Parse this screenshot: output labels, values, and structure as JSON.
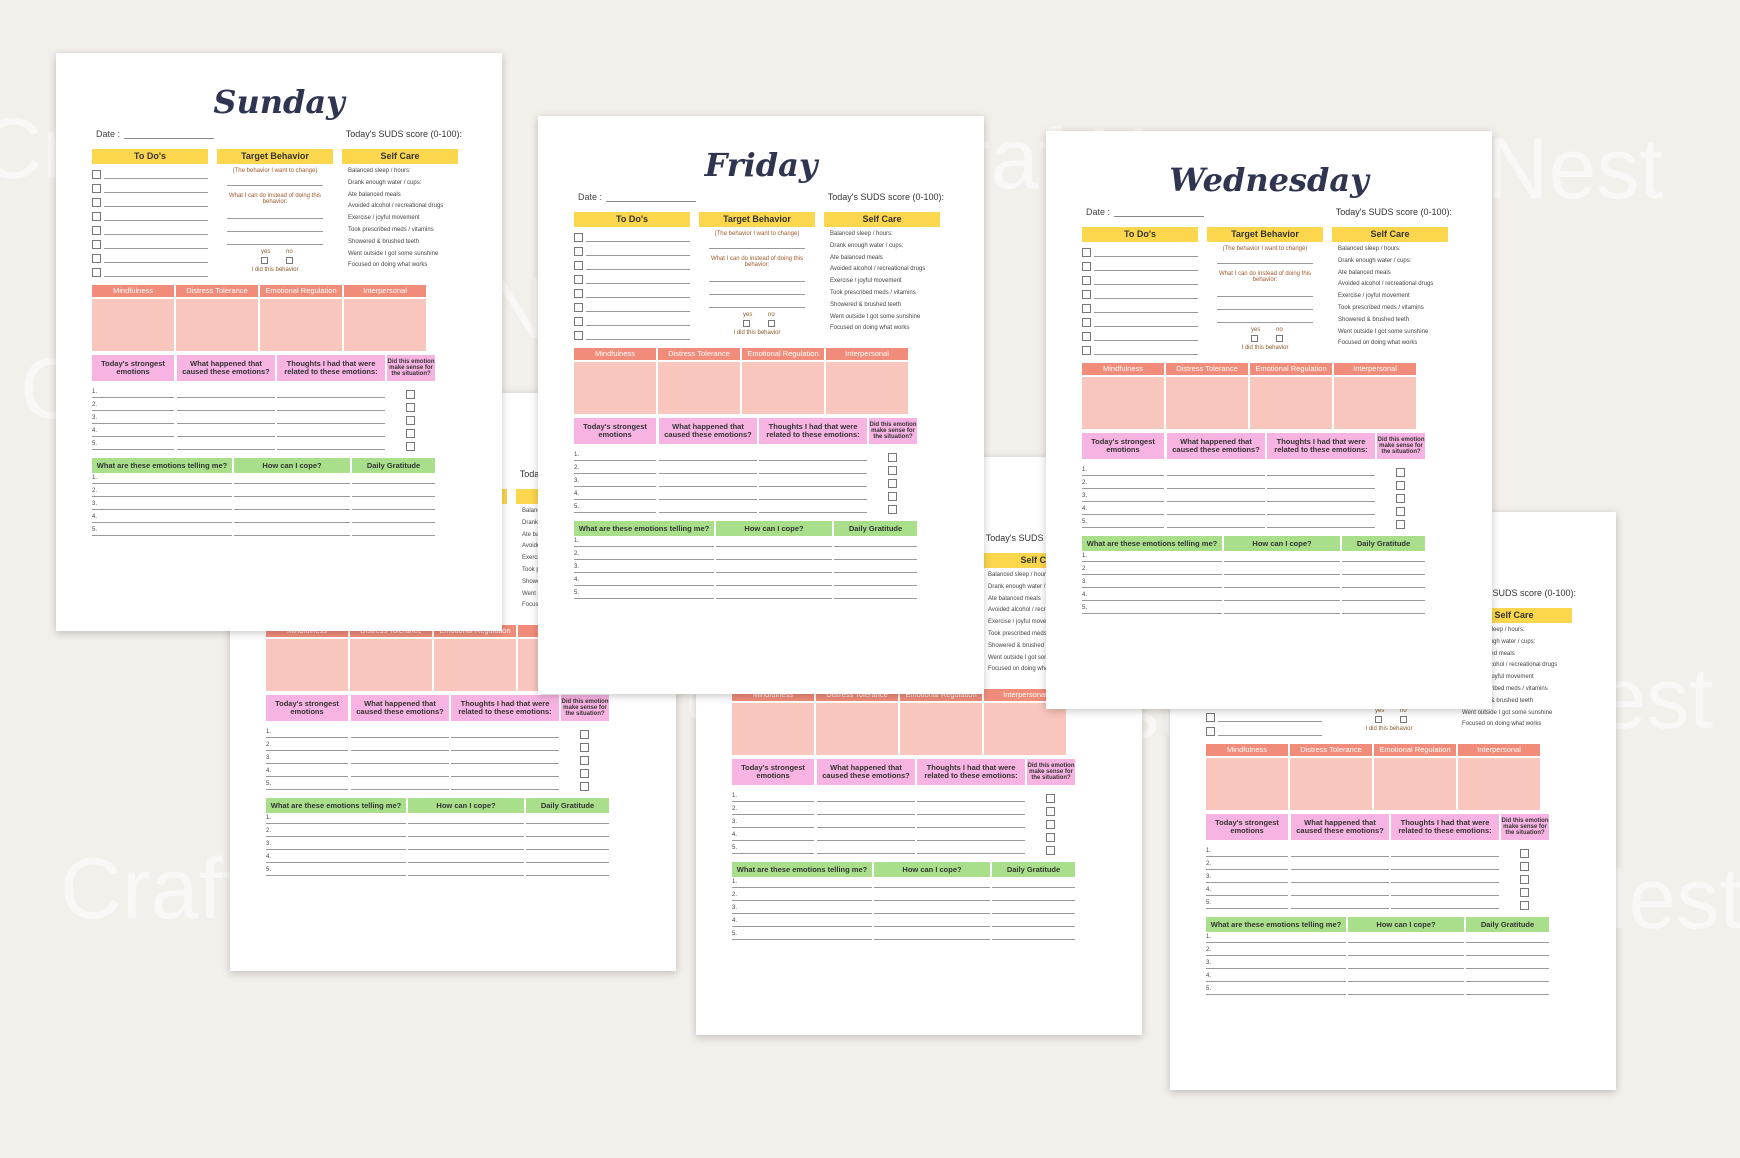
{
  "watermark": "CraftNest",
  "sheet_text": {
    "date_label": "Date :",
    "suds_label": "Today's SUDS score (0-100):",
    "todo_header": "To Do's",
    "target_header": "Target Behavior",
    "selfcare_header": "Self Care",
    "target_note1": "(The behavior I want to change)",
    "target_note2": "What I can do instead of doing this behavior:",
    "yes": "yes",
    "no": "no",
    "did_behavior": "I did this behavior",
    "selfcare_items": [
      "Balanced sleep / hours:",
      "Drank enough water / cups:",
      "Ate balanced meals",
      "Avoided alcohol / recreational drugs",
      "Exercise / joyful movement",
      "Took prescribed meds / vitamins",
      "Showered & brushed teeth",
      "Went outside I got some sunshine",
      "Focused on doing what works"
    ],
    "skills": [
      "Mindfulness",
      "Distress Tolerance",
      "Emotional Regulation",
      "Interpersonal Effectiveness"
    ],
    "emotion_headers": [
      "Today's strongest emotions",
      "What happened that caused these emotions?",
      "Thoughts I had that were related to these emotions:",
      "Did this emotion make sense for the situation?"
    ],
    "green_headers": [
      "What are these emotions telling me?",
      "How can I cope?",
      "Daily Gratitude"
    ],
    "numbers": [
      "1.",
      "2.",
      "3.",
      "4.",
      "5."
    ]
  },
  "sheets": [
    {
      "id": "back-left",
      "title": ""
    },
    {
      "id": "back-middle",
      "title": ""
    },
    {
      "id": "back-right",
      "title": ""
    },
    {
      "id": "wednesday",
      "title": "Wednesday"
    },
    {
      "id": "friday",
      "title": "Friday"
    },
    {
      "id": "sunday",
      "title": "Sunday"
    }
  ]
}
